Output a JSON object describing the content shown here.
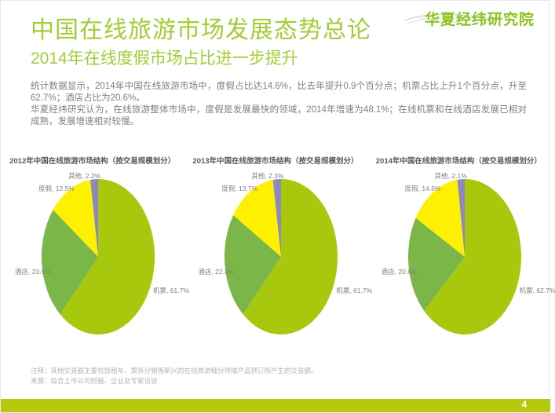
{
  "header": {
    "title": "中国在线旅游市场发展态势总论",
    "subtitle": "2014年在线度假市场占比进一步提升",
    "logo": "华夏经纬研究院"
  },
  "summary": {
    "paragraph1": "统计数据显示，2014年中国在线旅游市场中，度假占比达14.6%，比去年提升0.9个百分点；机票占比上升1个百分点，升至62.7%；酒店占比为20.6%。",
    "paragraph2": "华夏经纬研究认为，在线旅游整体市场中，度假是发展最快的领域，2014年增速为48.1%；在线机票和在线酒店发展已相对成熟，发展增速相对较慢。"
  },
  "chart_data": [
    {
      "type": "pie",
      "title": "2012年中国在线旅游市场结构（按交易规模划分）",
      "labels": [
        "机票",
        "酒店",
        "度假",
        "其他"
      ],
      "keys": [
        "airline",
        "hotel",
        "vacation",
        "other"
      ],
      "values": [
        61.7,
        23.6,
        12.5,
        2.2
      ],
      "label_texts": [
        "机票, 61.7%",
        "酒店, 23.6%",
        "度假, 12.5%",
        "其他, 2.2%"
      ],
      "colors": [
        "#a8c80e",
        "#7ab648",
        "#fdf000",
        "#8d89bb"
      ],
      "start_angle_deg": 0,
      "direction": "clockwise",
      "legend_position": "outside-labels"
    },
    {
      "type": "pie",
      "title": "2013年中国在线旅游市场结构（按交易规模划分）",
      "labels": [
        "机票",
        "酒店",
        "度假",
        "其他"
      ],
      "keys": [
        "airline",
        "hotel",
        "vacation",
        "other"
      ],
      "values": [
        61.7,
        22.3,
        13.7,
        2.3
      ],
      "label_texts": [
        "机票, 61.7%",
        "酒店, 22.3%",
        "度假, 13.7%",
        "其他, 2.3%"
      ],
      "colors": [
        "#a8c80e",
        "#7ab648",
        "#fdf000",
        "#8d89bb"
      ],
      "start_angle_deg": 0,
      "direction": "clockwise",
      "legend_position": "outside-labels"
    },
    {
      "type": "pie",
      "title": "2014年中国在线旅游市场结构（按交易规模划分）",
      "labels": [
        "机票",
        "酒店",
        "度假",
        "其他"
      ],
      "keys": [
        "airline",
        "hotel",
        "vacation",
        "other"
      ],
      "values": [
        62.7,
        20.6,
        14.6,
        2.1
      ],
      "label_texts": [
        "机票, 62.7%",
        "酒店, 20.6%",
        "度假, 14.6%",
        "其他, 2.1%"
      ],
      "colors": [
        "#a8c80e",
        "#7ab648",
        "#fdf000",
        "#8d89bb"
      ],
      "start_angle_deg": 0,
      "direction": "clockwise",
      "legend_position": "outside-labels"
    }
  ],
  "footnotes": {
    "note": "注释：其他交易额主要包括租车、票务分销等新兴的在线旅游细分领域产品预订所产生的交易额。",
    "source": "来源：综合上市公司财报、企业及专家访谈"
  },
  "footer": {
    "page_number": "4",
    "bar_color": "#b5ca0d"
  },
  "colors": {
    "title_green": "#a3cc35",
    "logo_green": "#8cc41f",
    "body_gray": "#7f7f7f",
    "note_gray": "#b3b3b3"
  }
}
